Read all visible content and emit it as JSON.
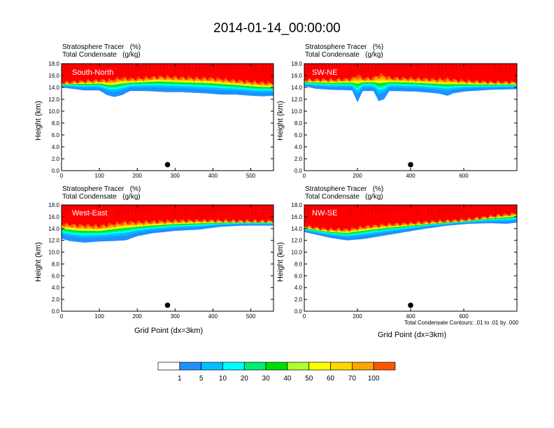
{
  "title": "2014-01-14_00:00:00",
  "chart_data": [
    {
      "type": "heatmap",
      "region": "South-North",
      "line1": "Stratosphere Tracer   (%)",
      "line2": "Total Condensate   (g/kg)",
      "ylabel": "Height (km)",
      "xlabel": "",
      "xlim": [
        0,
        560
      ],
      "ylim": [
        0,
        18
      ],
      "xticks": [
        0,
        100,
        200,
        300,
        400,
        500
      ],
      "yticks": [
        "0.0",
        "2.0",
        "4.0",
        "6.0",
        "8.0",
        "10.0",
        "12.0",
        "14.0",
        "16.0",
        "18.0"
      ],
      "marker_x": 280,
      "front": [
        [
          0,
          14.6
        ],
        [
          60,
          14.7
        ],
        [
          100,
          14.8
        ],
        [
          130,
          14.6
        ],
        [
          160,
          14.9
        ],
        [
          200,
          15.0
        ],
        [
          260,
          15.2
        ],
        [
          300,
          15.1
        ],
        [
          350,
          15.0
        ],
        [
          400,
          14.9
        ],
        [
          440,
          14.7
        ],
        [
          480,
          14.5
        ],
        [
          520,
          14.3
        ],
        [
          560,
          14.2
        ]
      ],
      "blue_floor": [
        [
          0,
          14.0
        ],
        [
          60,
          13.5
        ],
        [
          100,
          13.5
        ],
        [
          120,
          12.7
        ],
        [
          140,
          12.4
        ],
        [
          160,
          12.7
        ],
        [
          180,
          13.4
        ],
        [
          220,
          13.4
        ],
        [
          280,
          13.2
        ],
        [
          320,
          13.2
        ],
        [
          380,
          13.0
        ],
        [
          420,
          12.8
        ],
        [
          460,
          12.8
        ],
        [
          500,
          12.6
        ],
        [
          530,
          12.5
        ],
        [
          560,
          12.6
        ]
      ]
    },
    {
      "type": "heatmap",
      "region": "SW-NE",
      "line1": "Stratosphere Tracer   (%)",
      "line2": "Total Condensate   (g/kg)",
      "ylabel": "Height (km)",
      "xlabel": "",
      "xlim": [
        0,
        800
      ],
      "ylim": [
        0,
        18
      ],
      "xticks": [
        0,
        200,
        400,
        600
      ],
      "yticks": [
        "0.0",
        "2.0",
        "4.0",
        "6.0",
        "8.0",
        "10.0",
        "12.0",
        "14.0",
        "16.0",
        "18.0"
      ],
      "marker_x": 400,
      "front": [
        [
          0,
          15.0
        ],
        [
          100,
          14.9
        ],
        [
          200,
          15.0
        ],
        [
          300,
          15.1
        ],
        [
          400,
          15.0
        ],
        [
          500,
          14.8
        ],
        [
          600,
          14.7
        ],
        [
          700,
          14.6
        ],
        [
          800,
          14.6
        ]
      ],
      "blue_floor": [
        [
          0,
          14.2
        ],
        [
          40,
          13.8
        ],
        [
          100,
          13.6
        ],
        [
          180,
          13.5
        ],
        [
          200,
          11.5
        ],
        [
          220,
          13.4
        ],
        [
          260,
          13.4
        ],
        [
          280,
          11.7
        ],
        [
          300,
          12.0
        ],
        [
          320,
          13.4
        ],
        [
          420,
          13.3
        ],
        [
          500,
          13.0
        ],
        [
          540,
          12.6
        ],
        [
          560,
          13.0
        ],
        [
          600,
          13.3
        ],
        [
          700,
          13.6
        ],
        [
          800,
          13.7
        ]
      ]
    },
    {
      "type": "heatmap",
      "region": "West-East",
      "line1": "Stratosphere Tracer   (%)",
      "line2": "Total Condensate   (g/kg)",
      "ylabel": "Height (km)",
      "xlabel": "Grid Point (dx=3km)",
      "xlim": [
        0,
        560
      ],
      "ylim": [
        0,
        18
      ],
      "xticks": [
        0,
        100,
        200,
        300,
        400,
        500
      ],
      "yticks": [
        "0.0",
        "2.0",
        "4.0",
        "6.0",
        "8.0",
        "10.0",
        "12.0",
        "14.0",
        "16.0",
        "18.0"
      ],
      "marker_x": 280,
      "front": [
        [
          0,
          14.2
        ],
        [
          40,
          13.9
        ],
        [
          100,
          13.8
        ],
        [
          160,
          14.3
        ],
        [
          220,
          14.6
        ],
        [
          300,
          14.9
        ],
        [
          360,
          15.0
        ],
        [
          420,
          15.1
        ],
        [
          480,
          15.1
        ],
        [
          560,
          15.1
        ]
      ],
      "blue_floor": [
        [
          0,
          12.3
        ],
        [
          20,
          11.9
        ],
        [
          60,
          11.6
        ],
        [
          100,
          11.8
        ],
        [
          140,
          11.9
        ],
        [
          170,
          12.0
        ],
        [
          200,
          12.7
        ],
        [
          240,
          13.2
        ],
        [
          300,
          13.6
        ],
        [
          360,
          13.8
        ],
        [
          420,
          14.3
        ],
        [
          480,
          14.5
        ],
        [
          560,
          14.5
        ]
      ]
    },
    {
      "type": "heatmap",
      "region": "NW-SE",
      "line1": "Stratosphere Tracer   (%)",
      "line2": "Total Condensate   (g/kg)",
      "ylabel": "Height (km)",
      "xlabel": "Grid Point (dx=3km)",
      "footnote": "Total Condensate Contours: .01 to .01 by .000",
      "xlim": [
        0,
        800
      ],
      "ylim": [
        0,
        18
      ],
      "xticks": [
        0,
        200,
        400,
        600
      ],
      "yticks": [
        "0.0",
        "2.0",
        "4.0",
        "6.0",
        "8.0",
        "10.0",
        "12.0",
        "14.0",
        "16.0",
        "18.0"
      ],
      "marker_x": 400,
      "front": [
        [
          0,
          14.2
        ],
        [
          80,
          13.6
        ],
        [
          160,
          13.4
        ],
        [
          240,
          13.9
        ],
        [
          320,
          14.3
        ],
        [
          400,
          14.6
        ],
        [
          500,
          15.0
        ],
        [
          600,
          15.3
        ],
        [
          700,
          15.8
        ],
        [
          800,
          16.2
        ]
      ],
      "blue_floor": [
        [
          0,
          13.4
        ],
        [
          40,
          13.0
        ],
        [
          100,
          12.4
        ],
        [
          160,
          12.0
        ],
        [
          220,
          12.2
        ],
        [
          300,
          12.8
        ],
        [
          380,
          13.4
        ],
        [
          460,
          14.0
        ],
        [
          540,
          14.5
        ],
        [
          620,
          14.8
        ],
        [
          700,
          14.9
        ],
        [
          760,
          14.8
        ],
        [
          800,
          15.0
        ]
      ]
    }
  ],
  "colorbar": {
    "labels": [
      "1",
      "5",
      "10",
      "20",
      "30",
      "40",
      "50",
      "60",
      "70",
      "100"
    ],
    "colors": [
      "#ffffff",
      "#1e90ff",
      "#00bfff",
      "#00ffff",
      "#00ee76",
      "#00dd00",
      "#adff2f",
      "#ffff00",
      "#ffd700",
      "#ffa500",
      "#ff5500",
      "#ff0000"
    ]
  }
}
